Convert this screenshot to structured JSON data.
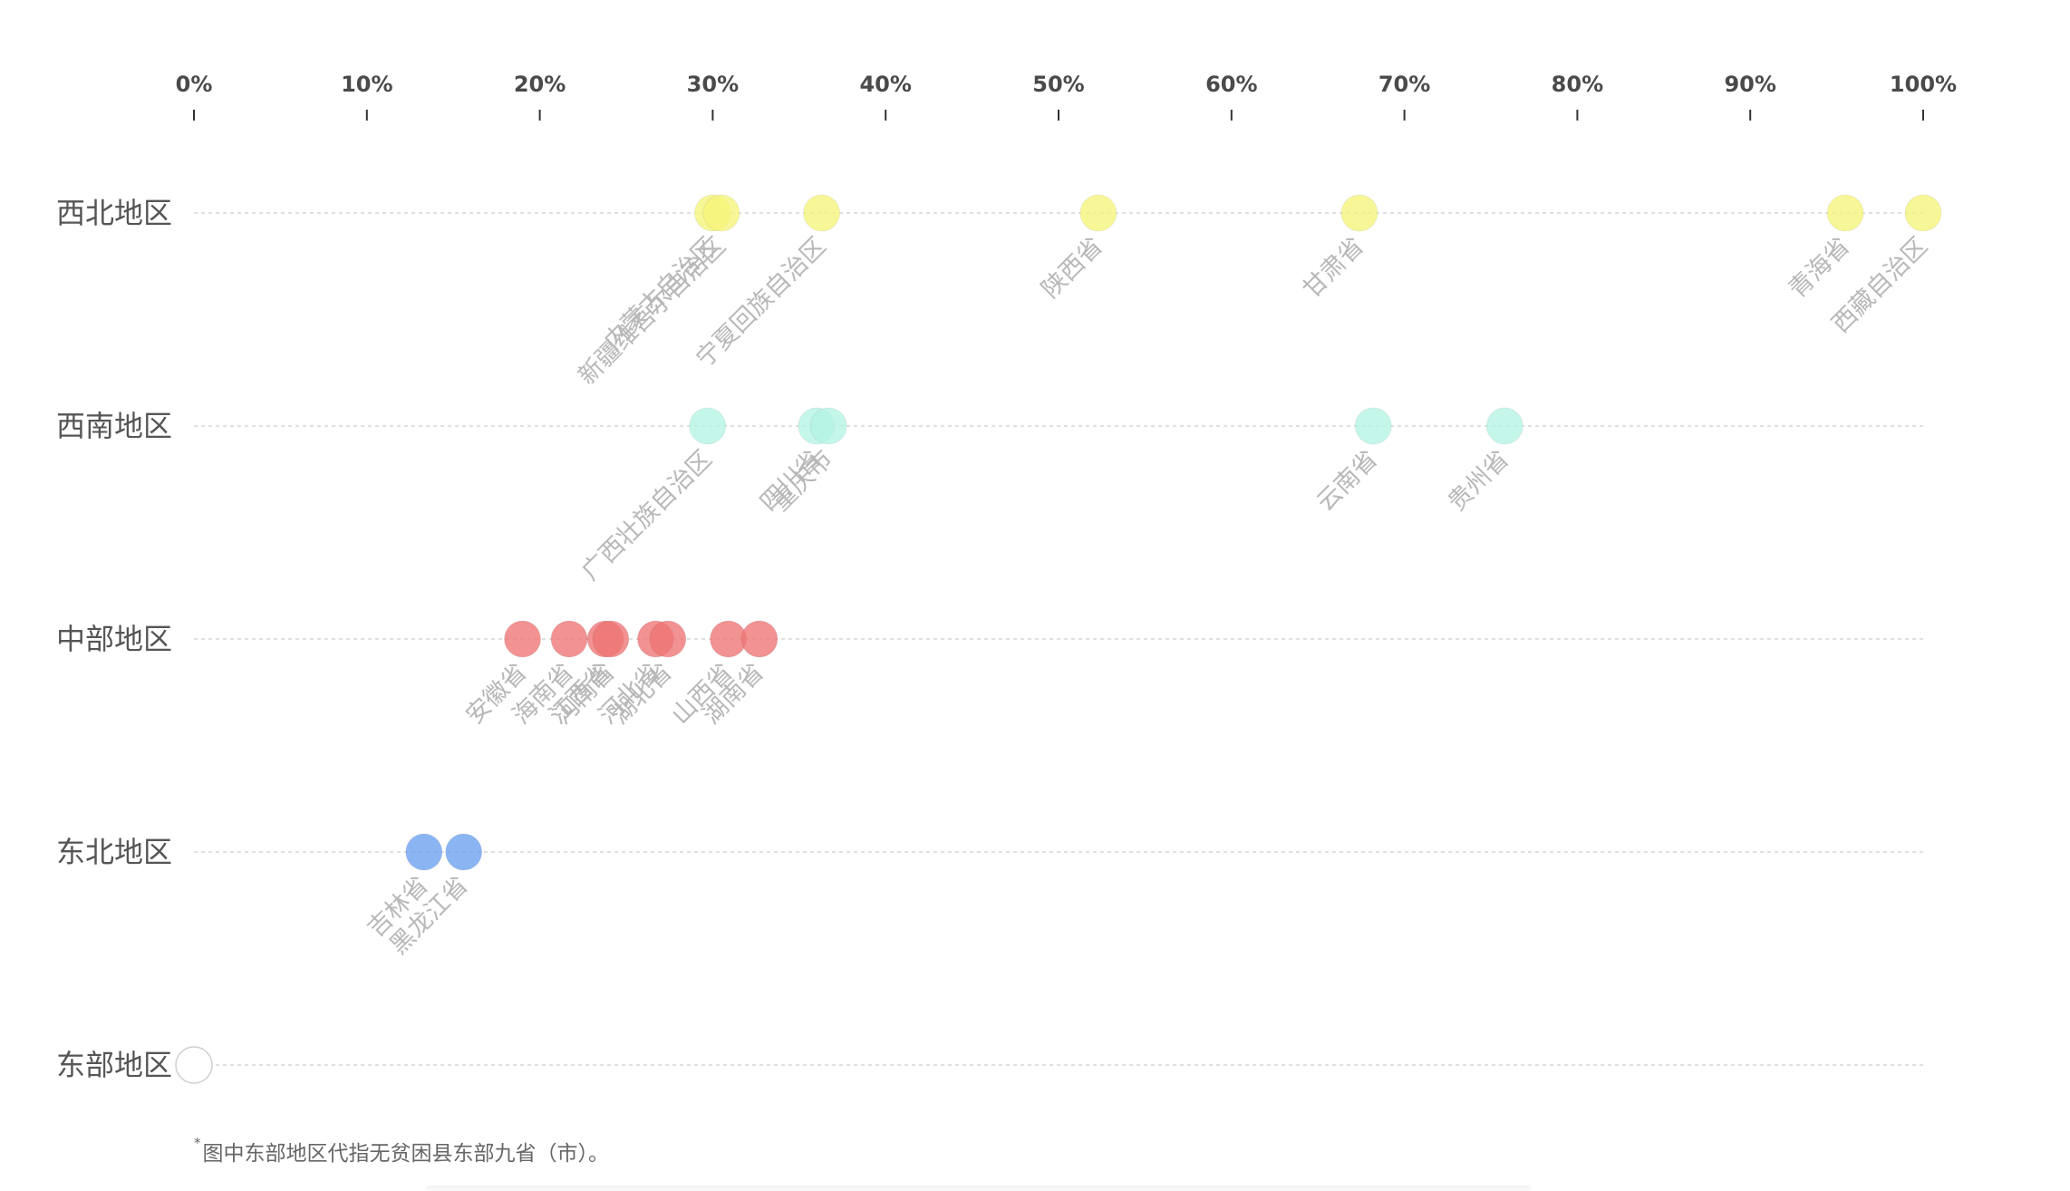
{
  "chart_data": {
    "type": "scatter",
    "title": "",
    "xlabel": "",
    "ylabel": "",
    "xlim": [
      0,
      100
    ],
    "x_ticks": [
      "0%",
      "10%",
      "20%",
      "30%",
      "40%",
      "50%",
      "60%",
      "70%",
      "80%",
      "90%",
      "100%"
    ],
    "grid": "horizontal dashed",
    "categories": [
      "西北地区",
      "西南地区",
      "中部地区",
      "东北地区",
      "东部地区"
    ],
    "series": [
      {
        "category": "西北地区",
        "color": "#f5f57a",
        "points": [
          {
            "label": "内蒙古自治区",
            "value": 30.0
          },
          {
            "label": "新疆维吾尔自治区",
            "value": 30.5
          },
          {
            "label": "宁夏回族自治区",
            "value": 36.3
          },
          {
            "label": "陕西省",
            "value": 52.3
          },
          {
            "label": "甘肃省",
            "value": 67.4
          },
          {
            "label": "青海省",
            "value": 95.5
          },
          {
            "label": "西藏自治区",
            "value": 100.0
          }
        ]
      },
      {
        "category": "西南地区",
        "color": "#b4f4e4",
        "points": [
          {
            "label": "广西壮族自治区",
            "value": 29.7
          },
          {
            "label": "四川省",
            "value": 36.0
          },
          {
            "label": "重庆市",
            "value": 36.7
          },
          {
            "label": "云南省",
            "value": 68.2
          },
          {
            "label": "贵州省",
            "value": 75.8
          }
        ]
      },
      {
        "category": "中部地区",
        "color": "#ee7373",
        "points": [
          {
            "label": "安徽省",
            "value": 19.0
          },
          {
            "label": "海南省",
            "value": 21.7
          },
          {
            "label": "江西省",
            "value": 23.8
          },
          {
            "label": "河南省",
            "value": 24.1
          },
          {
            "label": "河北省",
            "value": 26.7
          },
          {
            "label": "湖北省",
            "value": 27.4
          },
          {
            "label": "山西省",
            "value": 30.9
          },
          {
            "label": "湖南省",
            "value": 32.7
          }
        ]
      },
      {
        "category": "东北地区",
        "color": "#6a9ff0",
        "points": [
          {
            "label": "吉林省",
            "value": 13.3
          },
          {
            "label": "黑龙江省",
            "value": 15.6
          }
        ]
      },
      {
        "category": "东部地区",
        "color": "#ffffff",
        "points": [
          {
            "label": "",
            "value": 0
          }
        ]
      }
    ]
  },
  "footnote": {
    "marker": "*",
    "text": "图中东部地区代指无贫困县东部九省（市）。"
  }
}
